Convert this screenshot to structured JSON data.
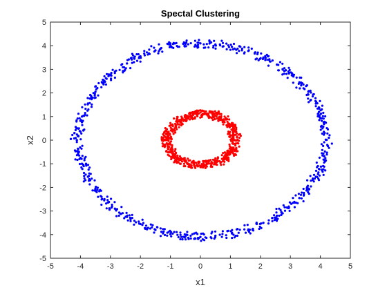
{
  "chart_data": {
    "type": "scatter",
    "title": "Spectal Clustering",
    "xlabel": "x1",
    "ylabel": "x2",
    "xlim": [
      -5,
      5
    ],
    "ylim": [
      -5,
      5
    ],
    "xticks": [
      "-5",
      "-4",
      "-3",
      "-2",
      "-1",
      "0",
      "1",
      "2",
      "3",
      "4",
      "5"
    ],
    "yticks": [
      "-5",
      "-4",
      "-3",
      "-2",
      "-1",
      "0",
      "1",
      "2",
      "3",
      "4",
      "5"
    ],
    "grid": false,
    "legend": "none",
    "series": [
      {
        "color": "#0000ff",
        "points": [
          [
            4.18,
            0.02
          ],
          [
            4.12,
            0.68
          ],
          [
            4.02,
            1.12
          ],
          [
            3.85,
            1.55
          ],
          [
            3.6,
            2.05
          ],
          [
            3.3,
            2.45
          ],
          [
            2.95,
            2.85
          ],
          [
            2.55,
            3.2
          ],
          [
            2.1,
            3.5
          ],
          [
            1.6,
            3.78
          ],
          [
            1.05,
            3.95
          ],
          [
            0.5,
            4.05
          ],
          [
            0.0,
            4.1
          ],
          [
            -0.5,
            4.08
          ],
          [
            -1.0,
            3.98
          ],
          [
            -1.5,
            3.8
          ],
          [
            -2.0,
            3.55
          ],
          [
            -2.45,
            3.25
          ],
          [
            -2.85,
            2.9
          ],
          [
            -3.2,
            2.5
          ],
          [
            -3.5,
            2.05
          ],
          [
            -3.75,
            1.55
          ],
          [
            -3.95,
            1.0
          ],
          [
            -4.05,
            0.5
          ],
          [
            -4.12,
            0.0
          ],
          [
            -4.05,
            -0.5
          ],
          [
            -3.95,
            -1.0
          ],
          [
            -3.75,
            -1.55
          ],
          [
            -3.5,
            -2.05
          ],
          [
            -3.2,
            -2.5
          ],
          [
            -2.85,
            -2.9
          ],
          [
            -2.45,
            -3.25
          ],
          [
            -2.0,
            -3.55
          ],
          [
            -1.5,
            -3.8
          ],
          [
            -1.0,
            -3.98
          ],
          [
            -0.5,
            -4.08
          ],
          [
            0.0,
            -4.1
          ],
          [
            0.5,
            -4.05
          ],
          [
            1.05,
            -3.95
          ],
          [
            1.6,
            -3.78
          ],
          [
            2.1,
            -3.5
          ],
          [
            2.55,
            -3.2
          ],
          [
            2.95,
            -2.85
          ],
          [
            3.3,
            -2.45
          ],
          [
            3.6,
            -2.05
          ],
          [
            3.85,
            -1.55
          ],
          [
            4.02,
            -1.12
          ],
          [
            4.12,
            -0.68
          ],
          [
            4.28,
            0.1
          ],
          [
            4.25,
            -0.25
          ],
          [
            -4.32,
            0.05
          ],
          [
            -4.2,
            0.3
          ],
          [
            0.3,
            4.22
          ],
          [
            -0.6,
            -4.2
          ],
          [
            2.3,
            3.42
          ],
          [
            -2.2,
            3.45
          ],
          [
            -3.05,
            -2.62
          ],
          [
            3.45,
            -2.3
          ],
          [
            0.9,
            -3.85
          ],
          [
            -1.3,
            -3.88
          ],
          [
            3.1,
            2.7
          ],
          [
            -3.6,
            1.8
          ],
          [
            1.3,
            3.98
          ],
          [
            -0.2,
            -3.95
          ],
          [
            3.95,
            1.35
          ],
          [
            -4.0,
            -0.75
          ],
          [
            2.7,
            -3.05
          ],
          [
            -2.65,
            -3.12
          ]
        ]
      },
      {
        "color": "#ff0000",
        "points": [
          [
            1.15,
            0.0
          ],
          [
            1.1,
            0.35
          ],
          [
            0.98,
            0.62
          ],
          [
            0.78,
            0.88
          ],
          [
            0.5,
            1.05
          ],
          [
            0.2,
            1.12
          ],
          [
            -0.12,
            1.1
          ],
          [
            -0.42,
            1.02
          ],
          [
            -0.7,
            0.85
          ],
          [
            -0.92,
            0.6
          ],
          [
            -1.08,
            0.32
          ],
          [
            -1.15,
            0.0
          ],
          [
            -1.08,
            -0.32
          ],
          [
            -0.92,
            -0.6
          ],
          [
            -0.7,
            -0.85
          ],
          [
            -0.42,
            -1.0
          ],
          [
            -0.12,
            -1.05
          ],
          [
            0.2,
            -1.03
          ],
          [
            0.5,
            -0.95
          ],
          [
            0.78,
            -0.8
          ],
          [
            0.98,
            -0.6
          ],
          [
            1.1,
            -0.32
          ],
          [
            1.22,
            0.12
          ],
          [
            -1.25,
            0.1
          ],
          [
            0.05,
            1.25
          ],
          [
            -0.3,
            -1.08
          ],
          [
            0.9,
            -0.45
          ],
          [
            -0.85,
            0.4
          ],
          [
            0.6,
            0.82
          ],
          [
            -0.55,
            -0.78
          ],
          [
            1.0,
            0.2
          ],
          [
            -1.0,
            -0.18
          ],
          [
            0.35,
            -1.12
          ],
          [
            -0.25,
            1.18
          ]
        ]
      }
    ]
  }
}
